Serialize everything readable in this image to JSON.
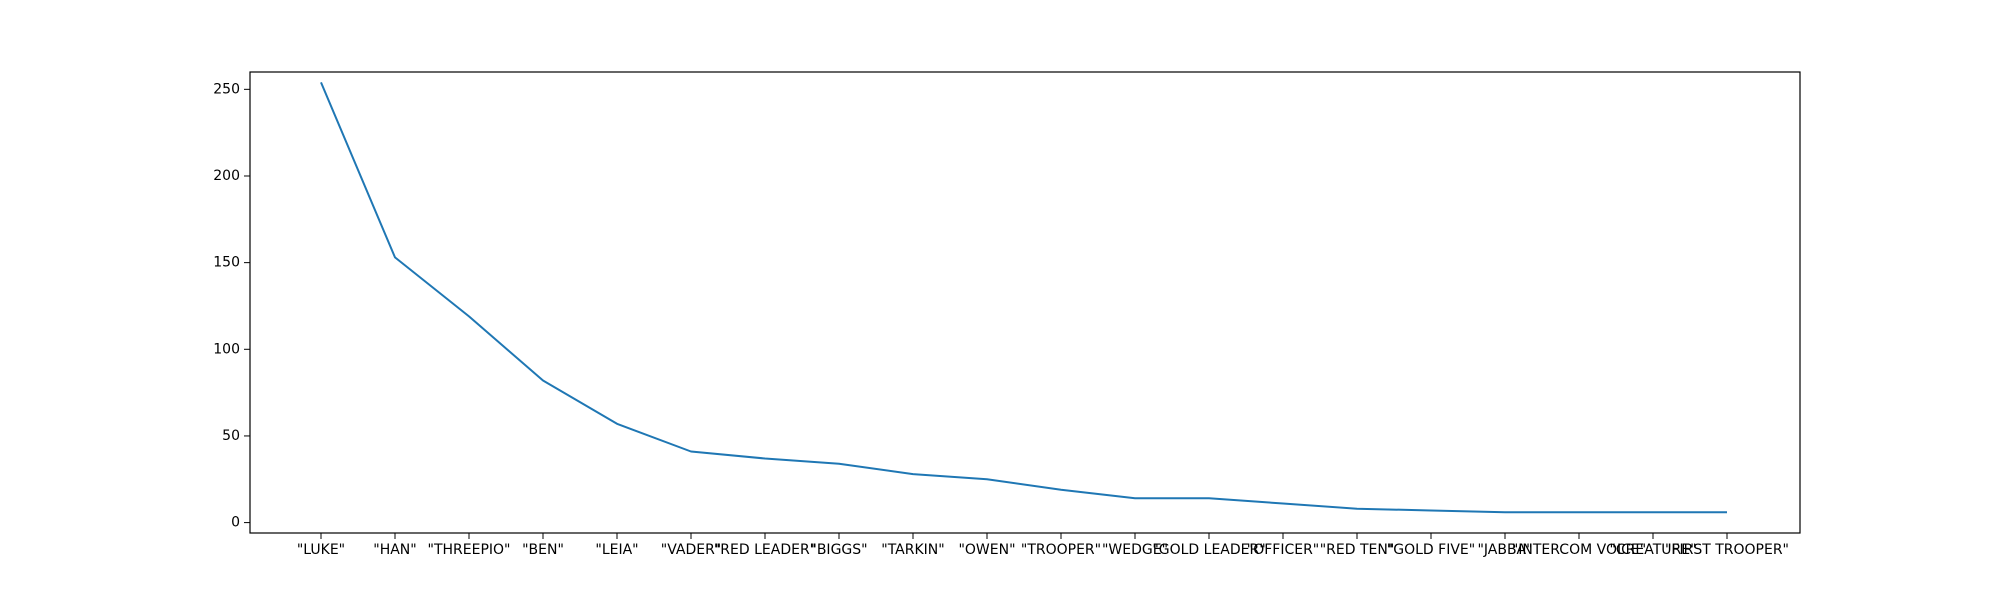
{
  "chart_data": {
    "type": "line",
    "title": "",
    "xlabel": "",
    "ylabel": "",
    "categories": [
      "\"LUKE\"",
      "\"HAN\"",
      "\"THREEPIO\"",
      "\"BEN\"",
      "\"LEIA\"",
      "\"VADER\"",
      "\"RED LEADER\"",
      "\"BIGGS\"",
      "\"TARKIN\"",
      "\"OWEN\"",
      "\"TROOPER\"",
      "\"WEDGE\"",
      "\"GOLD LEADER\"",
      "\"OFFICER\"",
      "\"RED TEN\"",
      "\"GOLD FIVE\"",
      "\"JABBA\"",
      "\"INTERCOM VOICE\"",
      "\"CREATURE\"",
      "\"FIRST TROOPER\""
    ],
    "values": [
      254,
      153,
      119,
      82,
      57,
      41,
      37,
      34,
      28,
      25,
      19,
      14,
      14,
      11,
      8,
      7,
      6,
      6,
      6,
      6
    ],
    "ylim": [
      -6,
      260
    ],
    "yticks": [
      0,
      50,
      100,
      150,
      200,
      250
    ],
    "grid": false,
    "line_color": "#1f77b4"
  }
}
